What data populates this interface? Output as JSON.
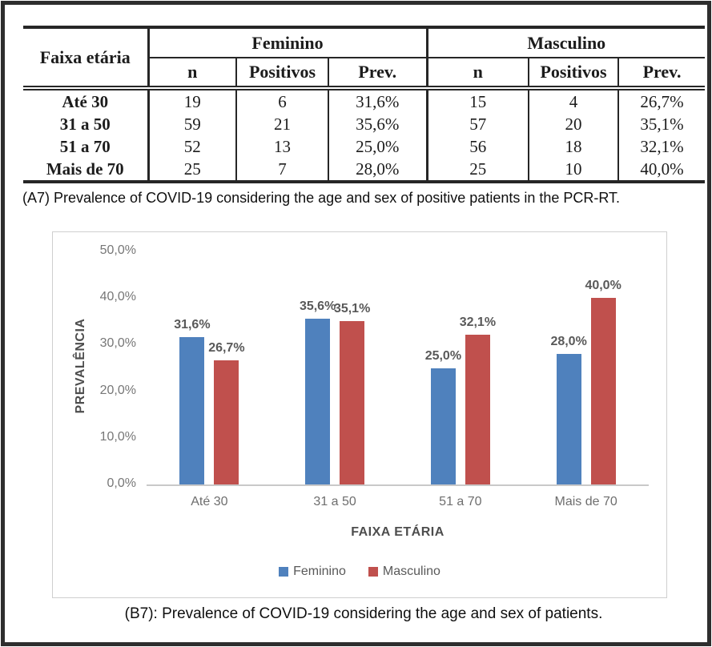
{
  "table": {
    "corner_header": "Faixa etária",
    "group_headers": [
      "Feminino",
      "Masculino"
    ],
    "sub_headers": [
      "n",
      "Positivos",
      "Prev."
    ],
    "rows": [
      [
        "Até 30",
        "19",
        "6",
        "31,6%",
        "15",
        "4",
        "26,7%"
      ],
      [
        "31 a 50",
        "59",
        "21",
        "35,6%",
        "57",
        "20",
        "35,1%"
      ],
      [
        "51 a 70",
        "52",
        "13",
        "25,0%",
        "56",
        "18",
        "32,1%"
      ],
      [
        "Mais de 70",
        "25",
        "7",
        "28,0%",
        "25",
        "10",
        "40,0%"
      ]
    ]
  },
  "caption_a": "(A7) Prevalence of COVID-19 considering the age and sex of positive patients in the PCR-RT.",
  "caption_b": "(B7): Prevalence of COVID-19 considering the age and sex of patients.",
  "chart_data": {
    "type": "bar",
    "categories": [
      "Até 30",
      "31 a 50",
      "51 a 70",
      "Mais de 70"
    ],
    "series": [
      {
        "name": "Feminino",
        "color": "#4F81BD",
        "values": [
          31.6,
          35.6,
          25.0,
          28.0
        ],
        "labels": [
          "31,6%",
          "35,6%",
          "25,0%",
          "28,0%"
        ]
      },
      {
        "name": "Masculino",
        "color": "#C0504D",
        "values": [
          26.7,
          35.1,
          32.1,
          40.0
        ],
        "labels": [
          "26,7%",
          "35,1%",
          "32,1%",
          "40,0%"
        ]
      }
    ],
    "ylabel": "PREVALÊNCIA",
    "xlabel": "FAIXA ETÁRIA",
    "ylim": [
      0,
      50
    ],
    "yticks": [
      "0,0%",
      "10,0%",
      "20,0%",
      "30,0%",
      "40,0%",
      "50,0%"
    ],
    "legend_position": "bottom",
    "grid": false
  }
}
